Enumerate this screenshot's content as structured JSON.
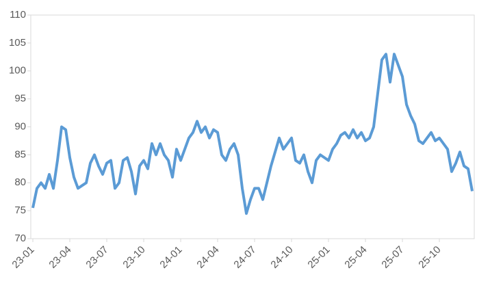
{
  "chart_data": {
    "type": "line",
    "categories": [
      "23-01",
      null,
      null,
      null,
      null,
      null,
      null,
      null,
      null,
      "23-04",
      null,
      null,
      null,
      null,
      null,
      null,
      null,
      null,
      "23-07",
      null,
      null,
      null,
      null,
      null,
      null,
      null,
      null,
      "23-10",
      null,
      null,
      null,
      null,
      null,
      null,
      null,
      null,
      "24-01",
      null,
      null,
      null,
      null,
      null,
      null,
      null,
      null,
      "24-04",
      null,
      null,
      null,
      null,
      null,
      null,
      null,
      null,
      "24-07",
      null,
      null,
      null,
      null,
      null,
      null,
      null,
      null,
      "24-10",
      null,
      null,
      null,
      null,
      null,
      null,
      null,
      null,
      "25-01",
      null,
      null,
      null,
      null,
      null,
      null,
      null,
      null,
      "25-04",
      null,
      null,
      null,
      null,
      null,
      null,
      null,
      null,
      "25-07",
      null,
      null,
      null,
      null,
      null,
      null,
      null,
      null,
      "25-10",
      null,
      null,
      null,
      null,
      null,
      null,
      null,
      null
    ],
    "series": [
      {
        "color": "#5b9bd5",
        "values": [
          75.5,
          79,
          80,
          79,
          81.5,
          79,
          84,
          90,
          89.5,
          84.5,
          81,
          79,
          79.5,
          80,
          83.5,
          85,
          83,
          81.5,
          83.5,
          84,
          79,
          80,
          84,
          84.5,
          82,
          78,
          83,
          84,
          82.5,
          87,
          85,
          87,
          85,
          84,
          81,
          86,
          84,
          86,
          88,
          89,
          91,
          89,
          90,
          88,
          89.5,
          89,
          85,
          84,
          86,
          87,
          85,
          79,
          74.5,
          77,
          79,
          79,
          77,
          80,
          83,
          85.5,
          88,
          86,
          87,
          88,
          84,
          83.5,
          85,
          82,
          80,
          84,
          85,
          84.5,
          84,
          86,
          87,
          88.5,
          89,
          88,
          89.5,
          88,
          89,
          87.5,
          88,
          90,
          96,
          102,
          103,
          98,
          103,
          101,
          99,
          94,
          92,
          90.5,
          87.5,
          87,
          88,
          89,
          87.5,
          88,
          87,
          86,
          82,
          83.5,
          85.5,
          83,
          82.5,
          78.5
        ]
      }
    ],
    "ylim": [
      70,
      110
    ],
    "yticks": [
      70,
      75,
      80,
      85,
      90,
      95,
      100,
      105,
      110
    ]
  }
}
